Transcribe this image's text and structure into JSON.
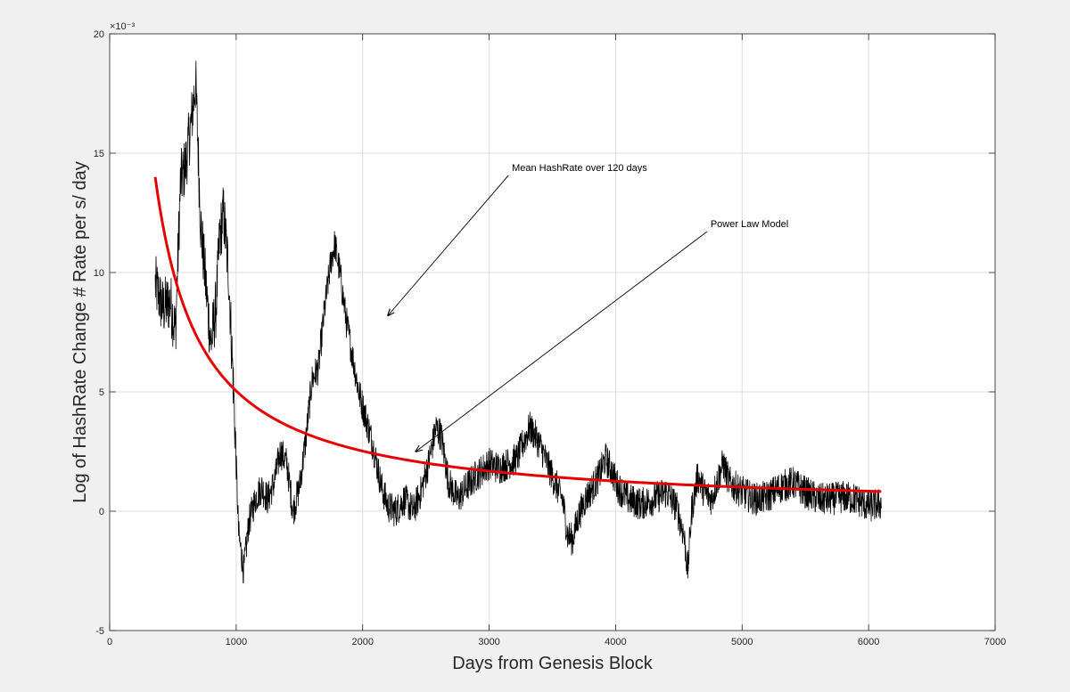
{
  "chart_data": {
    "type": "line",
    "xlabel": "Days from Genesis Block",
    "ylabel": "Log of HashRate Change # Rate per s/ day",
    "y_exponent": "×10⁻³",
    "xlim": [
      0,
      7000
    ],
    "ylim": [
      -5,
      20
    ],
    "xticks": [
      0,
      1000,
      2000,
      3000,
      4000,
      5000,
      6000,
      7000
    ],
    "yticks": [
      -5,
      0,
      5,
      10,
      15,
      20
    ],
    "xtick_labels": [
      "0",
      "1000",
      "2000",
      "3000",
      "4000",
      "5000",
      "6000",
      "7000"
    ],
    "ytick_labels": [
      "-5",
      "0",
      "5",
      "10",
      "15",
      "20"
    ],
    "grid": true,
    "series": [
      {
        "color": "#000000",
        "x": [
          360,
          420,
          480,
          520,
          560,
          600,
          650,
          680,
          720,
          760,
          800,
          840,
          870,
          900,
          940,
          980,
          1020,
          1060,
          1100,
          1150,
          1200,
          1250,
          1300,
          1350,
          1400,
          1450,
          1500,
          1550,
          1600,
          1650,
          1700,
          1750,
          1780,
          1820,
          1870,
          1920,
          1970,
          2020,
          2080,
          2150,
          2200,
          2260,
          2330,
          2400,
          2460,
          2520,
          2580,
          2620,
          2680,
          2750,
          2820,
          2900,
          3000,
          3080,
          3150,
          3220,
          3280,
          3320,
          3360,
          3400,
          3460,
          3520,
          3580,
          3620,
          3660,
          3700,
          3760,
          3820,
          3870,
          3920,
          3960,
          4020,
          4100,
          4200,
          4300,
          4400,
          4480,
          4540,
          4570,
          4600,
          4650,
          4700,
          4760,
          4800,
          4850,
          4900,
          5000,
          5100,
          5200,
          5300,
          5400,
          5500,
          5600,
          5700,
          5800,
          5900,
          6000,
          6100
        ],
        "values": [
          9.5,
          8.5,
          8.8,
          7.5,
          13.8,
          14.5,
          16.5,
          18.0,
          12.0,
          9.5,
          7.0,
          8.5,
          11.5,
          12.5,
          10.0,
          5.0,
          -1.0,
          -2.5,
          -0.5,
          0.5,
          1.0,
          0.5,
          1.2,
          2.5,
          2.0,
          0.0,
          1.0,
          3.0,
          5.5,
          6.0,
          8.5,
          10.5,
          11.2,
          10.0,
          8.0,
          6.5,
          5.0,
          4.0,
          2.8,
          1.0,
          0.2,
          0.0,
          0.5,
          0.0,
          0.8,
          2.0,
          3.5,
          3.2,
          1.2,
          0.5,
          1.0,
          1.5,
          2.0,
          1.8,
          2.0,
          2.2,
          3.0,
          3.5,
          3.2,
          2.8,
          2.0,
          1.2,
          0.5,
          -1.0,
          -1.2,
          -0.3,
          0.5,
          1.0,
          1.5,
          2.2,
          1.8,
          1.0,
          0.5,
          0.3,
          0.5,
          0.8,
          0.2,
          -1.0,
          -2.5,
          0.0,
          1.5,
          0.8,
          0.5,
          1.2,
          2.0,
          1.2,
          0.8,
          0.5,
          0.6,
          1.0,
          1.2,
          0.8,
          0.5,
          0.5,
          0.6,
          0.5,
          0.2,
          0.3
        ]
      },
      {
        "color": "#e60000",
        "model": "power_law",
        "x_range": [
          360,
          6100
        ],
        "start_value": 14.0,
        "exponent": -1.0
      }
    ],
    "annotations": [
      {
        "text": "Mean HashRate over 120 days",
        "x": 3180,
        "y": 14.25,
        "arrow_to": [
          2200,
          8.2
        ]
      },
      {
        "text": "Power Law Model",
        "x": 4750,
        "y": 11.9,
        "arrow_to": [
          2420,
          2.5
        ]
      }
    ]
  }
}
